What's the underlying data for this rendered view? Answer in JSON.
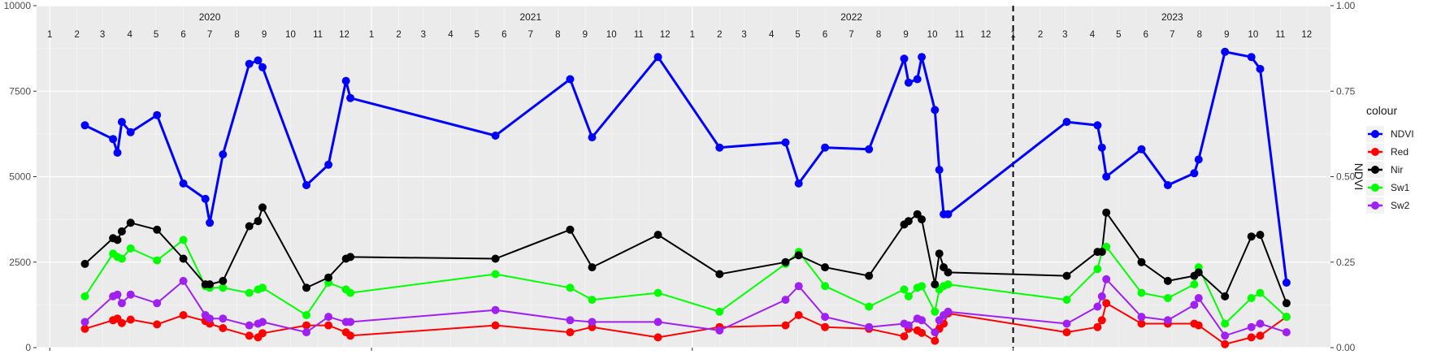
{
  "chart_data": {
    "type": "line",
    "left_axis": {
      "range": [
        0,
        10000
      ],
      "ticks": [
        0,
        2500,
        5000,
        7500,
        10000
      ],
      "tick_labels": [
        "0",
        "2500",
        "5000",
        "7500",
        "10000"
      ]
    },
    "right_axis": {
      "label": "NDVI",
      "range": [
        0,
        1
      ],
      "ticks": [
        0,
        0.25,
        0.5,
        0.75,
        1.0
      ],
      "tick_labels": [
        "0.00",
        "0.25",
        "0.50",
        "0.75",
        "1.00"
      ]
    },
    "x_range": [
      "2019-12-17",
      "2023-12-28"
    ],
    "x_major_ticks": [
      "2020-01-01",
      "2021-01-01",
      "2022-01-01",
      "2023-01-01"
    ],
    "years": [
      "2020",
      "2021",
      "2022",
      "2023"
    ],
    "months": [
      "1",
      "2",
      "3",
      "4",
      "5",
      "6",
      "7",
      "8",
      "9",
      "10",
      "11",
      "12"
    ],
    "vline": "2023-01-01",
    "grid": true,
    "legend": {
      "title": "colour",
      "position": "right",
      "entries": [
        {
          "name": "NDVI",
          "color": "#0000FF"
        },
        {
          "name": "Red",
          "color": "#FF0000"
        },
        {
          "name": "Nir",
          "color": "#000000"
        },
        {
          "name": "Sw1",
          "color": "#00FF00"
        },
        {
          "name": "Sw2",
          "color": "#A020F0"
        }
      ]
    },
    "series": [
      {
        "name": "NDVI",
        "axis": "right",
        "color": "#0000FF",
        "line_width": 3,
        "x": [
          "2020-02-10",
          "2020-03-13",
          "2020-03-18",
          "2020-03-23",
          "2020-04-02",
          "2020-05-02",
          "2020-06-01",
          "2020-06-26",
          "2020-07-01",
          "2020-07-16",
          "2020-08-15",
          "2020-08-25",
          "2020-08-30",
          "2020-10-19",
          "2020-11-13",
          "2020-12-03",
          "2020-12-08",
          "2021-05-22",
          "2021-08-15",
          "2021-09-09",
          "2021-11-23",
          "2022-02-01",
          "2022-04-17",
          "2022-05-02",
          "2022-06-01",
          "2022-07-21",
          "2022-08-30",
          "2022-09-04",
          "2022-09-14",
          "2022-09-19",
          "2022-10-04",
          "2022-10-09",
          "2022-10-14",
          "2022-10-19",
          "2023-03-03",
          "2023-04-07",
          "2023-04-12",
          "2023-04-17",
          "2023-05-27",
          "2023-06-26",
          "2023-07-26",
          "2023-07-31",
          "2023-08-30",
          "2023-09-29",
          "2023-10-09",
          "2023-11-08"
        ],
        "values": [
          0.65,
          0.61,
          0.57,
          0.66,
          0.63,
          0.68,
          0.48,
          0.435,
          0.365,
          0.565,
          0.83,
          0.84,
          0.82,
          0.475,
          0.535,
          0.78,
          0.73,
          0.62,
          0.785,
          0.615,
          0.85,
          0.585,
          0.6,
          0.48,
          0.585,
          0.58,
          0.845,
          0.775,
          0.785,
          0.85,
          0.695,
          0.52,
          0.39,
          0.39,
          0.66,
          0.65,
          0.585,
          0.5,
          0.58,
          0.475,
          0.51,
          0.55,
          0.865,
          0.85,
          0.815,
          0.19
        ]
      },
      {
        "name": "Red",
        "axis": "left",
        "color": "#FF0000",
        "line_width": 2,
        "x": [
          "2020-02-10",
          "2020-03-13",
          "2020-03-18",
          "2020-03-23",
          "2020-04-02",
          "2020-05-02",
          "2020-06-01",
          "2020-06-26",
          "2020-07-01",
          "2020-07-16",
          "2020-08-15",
          "2020-08-25",
          "2020-08-30",
          "2020-10-19",
          "2020-11-13",
          "2020-12-03",
          "2020-12-08",
          "2021-05-22",
          "2021-08-15",
          "2021-09-09",
          "2021-11-23",
          "2022-02-01",
          "2022-04-17",
          "2022-05-02",
          "2022-06-01",
          "2022-07-21",
          "2022-08-30",
          "2022-09-04",
          "2022-09-14",
          "2022-09-19",
          "2022-10-04",
          "2022-10-09",
          "2022-10-14",
          "2022-10-19",
          "2023-03-03",
          "2023-04-07",
          "2023-04-12",
          "2023-04-17",
          "2023-05-27",
          "2023-06-26",
          "2023-07-26",
          "2023-07-31",
          "2023-08-30",
          "2023-09-29",
          "2023-10-09",
          "2023-11-08"
        ],
        "values": [
          550,
          800,
          850,
          720,
          820,
          680,
          950,
          780,
          700,
          570,
          350,
          300,
          420,
          650,
          650,
          450,
          350,
          650,
          450,
          600,
          300,
          600,
          650,
          950,
          600,
          550,
          330,
          550,
          500,
          430,
          200,
          550,
          700,
          1000,
          450,
          600,
          800,
          1300,
          700,
          700,
          700,
          650,
          100,
          300,
          350,
          900
        ]
      },
      {
        "name": "Nir",
        "axis": "left",
        "color": "#000000",
        "line_width": 2,
        "x": [
          "2020-02-10",
          "2020-03-13",
          "2020-03-18",
          "2020-03-23",
          "2020-04-02",
          "2020-05-02",
          "2020-06-01",
          "2020-06-26",
          "2020-07-01",
          "2020-07-16",
          "2020-08-15",
          "2020-08-25",
          "2020-08-30",
          "2020-10-19",
          "2020-11-13",
          "2020-12-03",
          "2020-12-08",
          "2021-05-22",
          "2021-08-15",
          "2021-09-09",
          "2021-11-23",
          "2022-02-01",
          "2022-04-17",
          "2022-05-02",
          "2022-06-01",
          "2022-07-21",
          "2022-08-30",
          "2022-09-04",
          "2022-09-14",
          "2022-09-19",
          "2022-10-04",
          "2022-10-09",
          "2022-10-14",
          "2022-10-19",
          "2023-03-03",
          "2023-04-07",
          "2023-04-12",
          "2023-04-17",
          "2023-05-27",
          "2023-06-26",
          "2023-07-26",
          "2023-07-31",
          "2023-08-30",
          "2023-09-29",
          "2023-10-09",
          "2023-11-08"
        ],
        "values": [
          2450,
          3200,
          3150,
          3400,
          3650,
          3450,
          2600,
          1850,
          1850,
          1950,
          3550,
          3700,
          4100,
          1750,
          2050,
          2600,
          2650,
          2600,
          3450,
          2350,
          3300,
          2150,
          2500,
          2700,
          2350,
          2100,
          3600,
          3700,
          3900,
          3750,
          1850,
          2750,
          2350,
          2200,
          2100,
          2800,
          2800,
          3950,
          2500,
          1950,
          2100,
          2200,
          1500,
          3250,
          3300,
          1300
        ]
      },
      {
        "name": "Sw1",
        "axis": "left",
        "color": "#00FF00",
        "line_width": 2,
        "x": [
          "2020-02-10",
          "2020-03-13",
          "2020-03-18",
          "2020-03-23",
          "2020-04-02",
          "2020-05-02",
          "2020-06-01",
          "2020-06-26",
          "2020-07-01",
          "2020-07-16",
          "2020-08-15",
          "2020-08-25",
          "2020-08-30",
          "2020-10-19",
          "2020-11-13",
          "2020-12-03",
          "2020-12-08",
          "2021-05-22",
          "2021-08-15",
          "2021-09-09",
          "2021-11-23",
          "2022-02-01",
          "2022-04-17",
          "2022-05-02",
          "2022-06-01",
          "2022-07-21",
          "2022-08-30",
          "2022-09-04",
          "2022-09-14",
          "2022-09-19",
          "2022-10-04",
          "2022-10-09",
          "2022-10-14",
          "2022-10-19",
          "2023-03-03",
          "2023-04-07",
          "2023-04-12",
          "2023-04-17",
          "2023-05-27",
          "2023-06-26",
          "2023-07-26",
          "2023-07-31",
          "2023-08-30",
          "2023-09-29",
          "2023-10-09",
          "2023-11-08"
        ],
        "values": [
          1500,
          2750,
          2650,
          2600,
          2900,
          2550,
          3150,
          1800,
          1750,
          1750,
          1600,
          1700,
          1750,
          950,
          1900,
          1700,
          1600,
          2150,
          1750,
          1400,
          1600,
          1050,
          2450,
          2800,
          1800,
          1200,
          1700,
          1500,
          1750,
          1800,
          1050,
          1700,
          1800,
          1850,
          1400,
          2300,
          2800,
          2950,
          1600,
          1450,
          1850,
          2350,
          700,
          1450,
          1600,
          900
        ]
      },
      {
        "name": "Sw2",
        "axis": "left",
        "color": "#A020F0",
        "line_width": 2,
        "x": [
          "2020-02-10",
          "2020-03-13",
          "2020-03-18",
          "2020-03-23",
          "2020-04-02",
          "2020-05-02",
          "2020-06-01",
          "2020-06-26",
          "2020-07-01",
          "2020-07-16",
          "2020-08-15",
          "2020-08-25",
          "2020-08-30",
          "2020-10-19",
          "2020-11-13",
          "2020-12-03",
          "2020-12-08",
          "2021-05-22",
          "2021-08-15",
          "2021-09-09",
          "2021-11-23",
          "2022-02-01",
          "2022-04-17",
          "2022-05-02",
          "2022-06-01",
          "2022-07-21",
          "2022-08-30",
          "2022-09-04",
          "2022-09-14",
          "2022-09-19",
          "2022-10-04",
          "2022-10-09",
          "2022-10-14",
          "2022-10-19",
          "2023-03-03",
          "2023-04-07",
          "2023-04-12",
          "2023-04-17",
          "2023-05-27",
          "2023-06-26",
          "2023-07-26",
          "2023-07-31",
          "2023-08-30",
          "2023-09-29",
          "2023-10-09",
          "2023-11-08"
        ],
        "values": [
          750,
          1500,
          1550,
          1300,
          1550,
          1300,
          1950,
          950,
          850,
          850,
          650,
          700,
          750,
          450,
          900,
          750,
          750,
          1100,
          800,
          750,
          750,
          500,
          1400,
          1800,
          900,
          600,
          700,
          650,
          850,
          800,
          450,
          800,
          950,
          1050,
          700,
          1200,
          1500,
          2000,
          900,
          800,
          1250,
          1450,
          350,
          600,
          700,
          450
        ]
      }
    ]
  }
}
